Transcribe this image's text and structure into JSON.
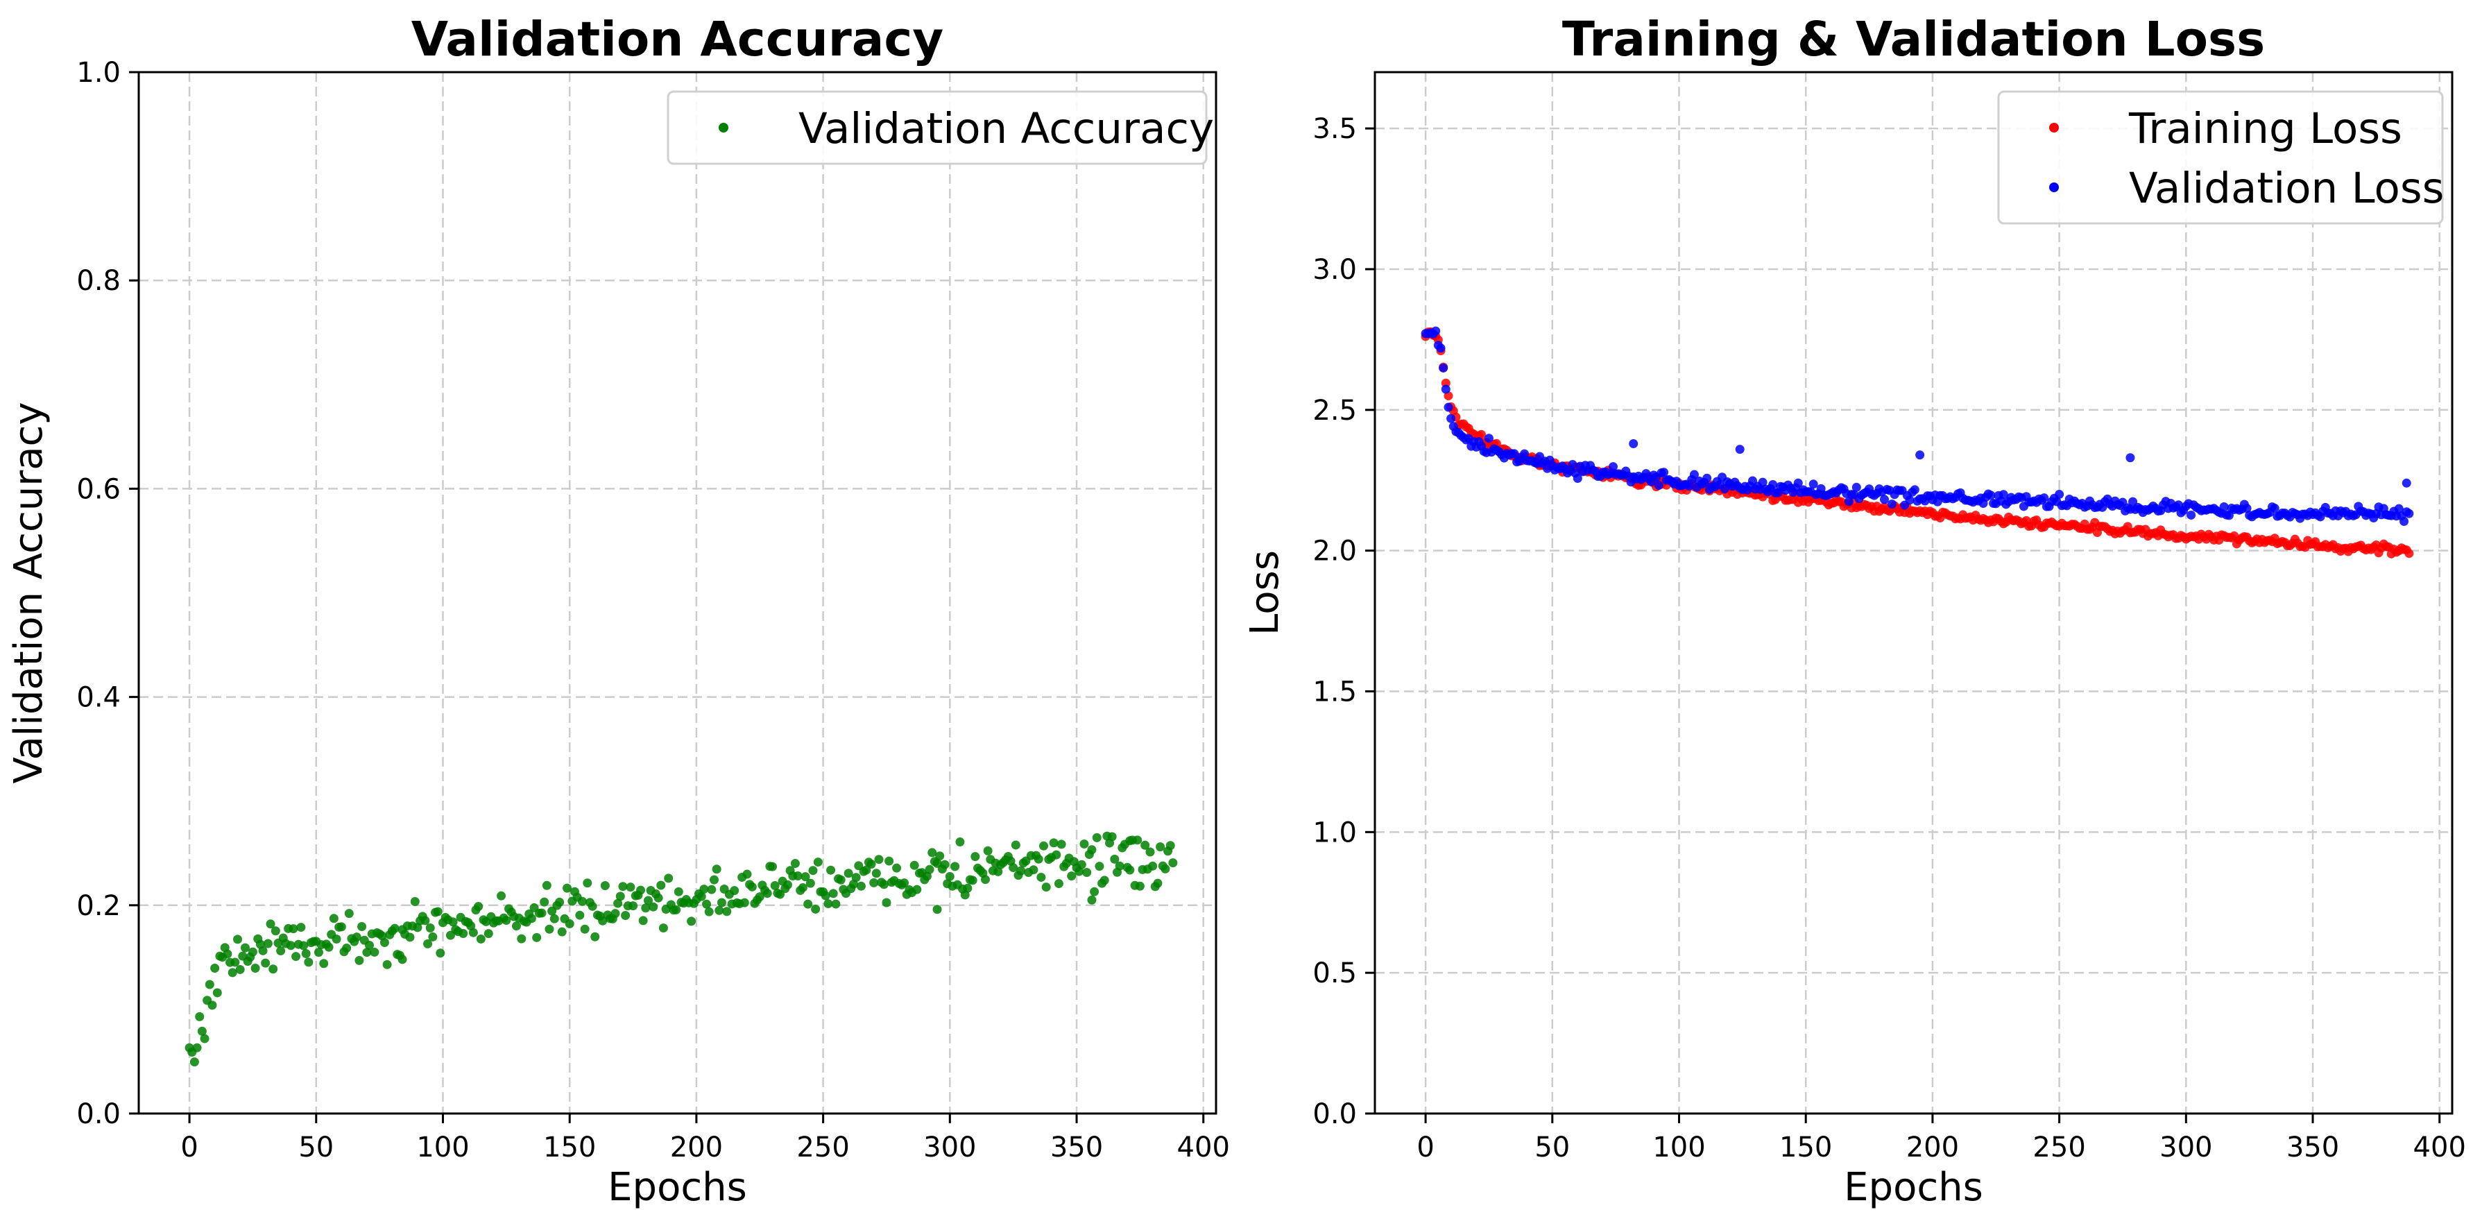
{
  "chart_data": [
    {
      "type": "scatter",
      "title": "Validation Accuracy",
      "xlabel": "Epochs",
      "ylabel": "Validation Accuracy",
      "xlim": [
        -20,
        405
      ],
      "ylim": [
        0,
        1.0
      ],
      "xticks": [
        0,
        50,
        100,
        150,
        200,
        250,
        300,
        350,
        400
      ],
      "xtick_labels": [
        "0",
        "50",
        "100",
        "150",
        "200",
        "250",
        "300",
        "350",
        "400"
      ],
      "yticks": [
        0.0,
        0.2,
        0.4,
        0.6,
        0.8,
        1.0
      ],
      "ytick_labels": [
        "0.0",
        "0.2",
        "0.4",
        "0.6",
        "0.8",
        "1.0"
      ],
      "grid": true,
      "legend_position": "top-right",
      "series": [
        {
          "name": "Validation Accuracy",
          "color": "#008000",
          "trend": [
            [
              0,
              0.055
            ],
            [
              2,
              0.06
            ],
            [
              5,
              0.08
            ],
            [
              7,
              0.115
            ],
            [
              10,
              0.13
            ],
            [
              15,
              0.145
            ],
            [
              30,
              0.16
            ],
            [
              60,
              0.168
            ],
            [
              100,
              0.178
            ],
            [
              150,
              0.195
            ],
            [
              200,
              0.208
            ],
            [
              250,
              0.221
            ],
            [
              300,
              0.232
            ],
            [
              350,
              0.24
            ],
            [
              388,
              0.243
            ]
          ],
          "noise": 0.012,
          "x_end": 388,
          "outliers": [
            [
              84,
              0.148
            ],
            [
              295,
              0.196
            ],
            [
              356,
              0.205
            ],
            [
              371,
              0.262
            ]
          ]
        }
      ]
    },
    {
      "type": "scatter",
      "title": "Training & Validation Loss",
      "xlabel": "Epochs",
      "ylabel": "Loss",
      "xlim": [
        -20,
        405
      ],
      "ylim": [
        0,
        3.7
      ],
      "xticks": [
        0,
        50,
        100,
        150,
        200,
        250,
        300,
        350,
        400
      ],
      "xtick_labels": [
        "0",
        "50",
        "100",
        "150",
        "200",
        "250",
        "300",
        "350",
        "400"
      ],
      "yticks": [
        0.0,
        0.5,
        1.0,
        1.5,
        2.0,
        2.5,
        3.0,
        3.5
      ],
      "ytick_labels": [
        "0.0",
        "0.5",
        "1.0",
        "1.5",
        "2.0",
        "2.5",
        "3.0",
        "3.5"
      ],
      "grid": true,
      "legend_position": "top-right",
      "series": [
        {
          "name": "Training Loss",
          "color": "#ff0000",
          "trend": [
            [
              0,
              2.775
            ],
            [
              4,
              2.765
            ],
            [
              6,
              2.72
            ],
            [
              8,
              2.6
            ],
            [
              10,
              2.52
            ],
            [
              13,
              2.46
            ],
            [
              18,
              2.42
            ],
            [
              30,
              2.36
            ],
            [
              50,
              2.3
            ],
            [
              100,
              2.23
            ],
            [
              150,
              2.18
            ],
            [
              200,
              2.13
            ],
            [
              250,
              2.09
            ],
            [
              300,
              2.05
            ],
            [
              350,
              2.02
            ],
            [
              388,
              2.0
            ]
          ],
          "noise": 0.008,
          "x_end": 388
        },
        {
          "name": "Validation Loss",
          "color": "#0000ff",
          "trend": [
            [
              0,
              2.775
            ],
            [
              4,
              2.765
            ],
            [
              6,
              2.7
            ],
            [
              8,
              2.56
            ],
            [
              10,
              2.48
            ],
            [
              13,
              2.43
            ],
            [
              18,
              2.39
            ],
            [
              30,
              2.35
            ],
            [
              50,
              2.3
            ],
            [
              100,
              2.245
            ],
            [
              150,
              2.21
            ],
            [
              200,
              2.19
            ],
            [
              250,
              2.17
            ],
            [
              300,
              2.15
            ],
            [
              350,
              2.135
            ],
            [
              388,
              2.13
            ]
          ],
          "noise": 0.012,
          "x_end": 388,
          "outliers": [
            [
              82,
              2.38
            ],
            [
              124,
              2.36
            ],
            [
              195,
              2.34
            ],
            [
              278,
              2.33
            ],
            [
              387,
              2.24
            ]
          ]
        }
      ]
    }
  ]
}
